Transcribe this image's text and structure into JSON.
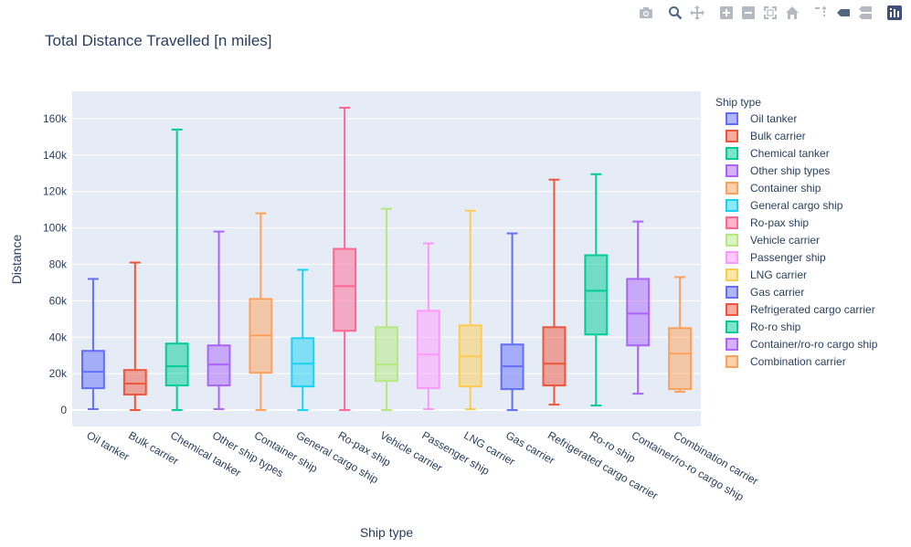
{
  "modebar": {
    "buttons": [
      "camera-icon",
      "zoom-icon",
      "pan-icon",
      "zoom-in-icon",
      "zoom-out-icon",
      "autoscale-icon",
      "home-icon",
      "spike-lines-icon",
      "hover-closest-icon",
      "hover-compare-icon",
      "plotly-logo-icon"
    ]
  },
  "chart_data": {
    "type": "box",
    "title": "Total Distance Travelled [n miles]",
    "xlabel": "Ship type",
    "ylabel": "Distance",
    "ylim": [
      -9000,
      175000
    ],
    "yticks": [
      0,
      20000,
      40000,
      60000,
      80000,
      100000,
      120000,
      140000,
      160000
    ],
    "ytick_labels": [
      "0",
      "20k",
      "40k",
      "60k",
      "80k",
      "100k",
      "120k",
      "140k",
      "160k"
    ],
    "grid": true,
    "legend": {
      "title": "Ship type",
      "placement": "right"
    },
    "series": [
      {
        "name": "Oil tanker",
        "color": "#636efa",
        "min": 500,
        "q1": 12000,
        "median": 21000,
        "q3": 32500,
        "max": 72000
      },
      {
        "name": "Bulk carrier",
        "color": "#EF553B",
        "min": 0,
        "q1": 8500,
        "median": 14500,
        "q3": 22000,
        "max": 81000
      },
      {
        "name": "Chemical tanker",
        "color": "#00cc96",
        "min": 0,
        "q1": 13500,
        "median": 24000,
        "q3": 36500,
        "max": 154000
      },
      {
        "name": "Other ship types",
        "color": "#ab63fa",
        "min": 500,
        "q1": 13500,
        "median": 25000,
        "q3": 35500,
        "max": 98000
      },
      {
        "name": "Container ship",
        "color": "#FFA15A",
        "min": 0,
        "q1": 20500,
        "median": 41000,
        "q3": 61000,
        "max": 108000
      },
      {
        "name": "General cargo ship",
        "color": "#19d3f3",
        "min": 0,
        "q1": 13000,
        "median": 25500,
        "q3": 39500,
        "max": 77000
      },
      {
        "name": "Ro-pax ship",
        "color": "#FF6692",
        "min": 0,
        "q1": 43500,
        "median": 68000,
        "q3": 88500,
        "max": 166000
      },
      {
        "name": "Vehicle carrier",
        "color": "#B6E880",
        "min": 0,
        "q1": 16000,
        "median": 25000,
        "q3": 45500,
        "max": 110500
      },
      {
        "name": "Passenger ship",
        "color": "#FF97FF",
        "min": 500,
        "q1": 12000,
        "median": 30500,
        "q3": 54500,
        "max": 91500
      },
      {
        "name": "LNG carrier",
        "color": "#FECB52",
        "min": 500,
        "q1": 13000,
        "median": 29500,
        "q3": 46500,
        "max": 109500
      },
      {
        "name": "Gas carrier",
        "color": "#636efa",
        "min": 0,
        "q1": 11500,
        "median": 24000,
        "q3": 36000,
        "max": 97000
      },
      {
        "name": "Refrigerated cargo carrier",
        "color": "#EF553B",
        "min": 3000,
        "q1": 13500,
        "median": 25500,
        "q3": 45500,
        "max": 126500
      },
      {
        "name": "Ro-ro ship",
        "color": "#00cc96",
        "min": 2500,
        "q1": 41500,
        "median": 65500,
        "q3": 85000,
        "max": 129500
      },
      {
        "name": "Container/ro-ro cargo ship",
        "color": "#ab63fa",
        "min": 9000,
        "q1": 35500,
        "median": 53000,
        "q3": 72000,
        "max": 103500
      },
      {
        "name": "Combination carrier",
        "color": "#FFA15A",
        "min": 10000,
        "q1": 11500,
        "median": 31000,
        "q3": 45000,
        "max": 73000
      }
    ]
  }
}
